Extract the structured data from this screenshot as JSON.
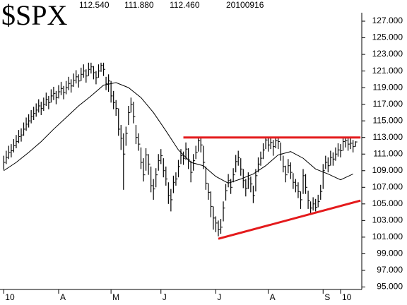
{
  "chart_data": {
    "type": "ohlc",
    "title": "$SPX",
    "info": [
      "112.540",
      "111.880",
      "112.460",
      "20100916"
    ],
    "xlim": [
      -1.5,
      143.5
    ],
    "xticks": [
      {
        "value": 0,
        "label": "10"
      },
      {
        "value": 22,
        "label": "A"
      },
      {
        "value": 43,
        "label": "M"
      },
      {
        "value": 63,
        "label": "J"
      },
      {
        "value": 85,
        "label": "J"
      },
      {
        "value": 106,
        "label": "A"
      },
      {
        "value": 128,
        "label": "S"
      },
      {
        "value": 135,
        "label": "10"
      }
    ],
    "ylim": [
      94.7,
      129.55
    ],
    "yticks": [
      {
        "value": 95,
        "label": "95.000"
      },
      {
        "value": 97,
        "label": "97.000"
      },
      {
        "value": 99,
        "label": "99.000"
      },
      {
        "value": 101,
        "label": "101.000"
      },
      {
        "value": 103,
        "label": "103.000"
      },
      {
        "value": 105,
        "label": "105.000"
      },
      {
        "value": 107,
        "label": "107.000"
      },
      {
        "value": 109,
        "label": "109.000"
      },
      {
        "value": 111,
        "label": "111.000"
      },
      {
        "value": 113,
        "label": "113.000"
      },
      {
        "value": 115,
        "label": "115.000"
      },
      {
        "value": 117,
        "label": "117.000"
      },
      {
        "value": 119,
        "label": "119.000"
      },
      {
        "value": 121,
        "label": "121.000"
      },
      {
        "value": 123,
        "label": "123.000"
      },
      {
        "value": 125,
        "label": "125.000"
      },
      {
        "value": 127,
        "label": "127.000"
      }
    ],
    "color": "#000000",
    "high": [
      110.8,
      111.4,
      112.0,
      112.2,
      112.8,
      113.3,
      113.9,
      114.1,
      114.8,
      115.4,
      115.8,
      116.3,
      116.7,
      117.1,
      117.6,
      117.3,
      117.8,
      118.4,
      118.0,
      118.8,
      119.1,
      118.6,
      119.3,
      119.7,
      119.2,
      119.8,
      120.3,
      120.0,
      120.7,
      121.1,
      120.6,
      121.4,
      121.8,
      121.2,
      122.0,
      122.0,
      121.6,
      121.0,
      121.8,
      122.0,
      122.0,
      120.3,
      120.6,
      119.8,
      118.6,
      117.5,
      116.5,
      114.5,
      113.5,
      114.3,
      116.8,
      117.8,
      117.3,
      114.5,
      113.5,
      111.8,
      110.5,
      111.7,
      111.0,
      109.5,
      108.0,
      109.3,
      111.0,
      111.6,
      110.5,
      109.5,
      107.6,
      106.8,
      108.4,
      108.8,
      110.3,
      111.6,
      111.3,
      112.4,
      111.7,
      110.2,
      111.0,
      112.0,
      113.0,
      112.9,
      112.0,
      109.5,
      107.5,
      106.5,
      104.7,
      103.5,
      103.0,
      103.2,
      105.3,
      107.4,
      108.6,
      108.0,
      109.3,
      110.9,
      111.4,
      110.5,
      109.2,
      108.0,
      108.8,
      108.3,
      107.2,
      109.2,
      110.6,
      111.3,
      112.3,
      113.0,
      112.9,
      113.0,
      112.7,
      113.0,
      113.0,
      112.4,
      110.8,
      109.6,
      110.4,
      110.0,
      108.7,
      108.0,
      107.6,
      106.5,
      109.2,
      108.6,
      106.6,
      105.3,
      105.8,
      105.6,
      106.1,
      107.3,
      109.8,
      110.8,
      110.6,
      111.4,
      111.2,
      111.8,
      112.3,
      112.2,
      113.0,
      113.0,
      113.0,
      112.9,
      112.7,
      112.54
    ],
    "low": [
      109.1,
      109.8,
      110.4,
      110.6,
      111.2,
      111.7,
      112.3,
      112.5,
      113.2,
      113.8,
      114.2,
      114.7,
      115.1,
      115.5,
      116.0,
      115.7,
      116.2,
      116.8,
      116.4,
      117.2,
      117.5,
      117.0,
      117.7,
      118.1,
      117.6,
      118.2,
      118.7,
      118.4,
      119.1,
      119.5,
      119.0,
      119.8,
      120.2,
      119.6,
      120.4,
      120.7,
      120.0,
      119.4,
      120.2,
      120.9,
      120.4,
      118.7,
      118.5,
      117.2,
      116.4,
      115.6,
      113.2,
      111.5,
      106.7,
      112.0,
      114.5,
      116.0,
      114.7,
      112.2,
      111.4,
      109.2,
      107.7,
      109.0,
      108.5,
      106.4,
      105.5,
      107.0,
      109.0,
      109.8,
      108.2,
      107.2,
      105.0,
      104.1,
      106.3,
      107.2,
      108.2,
      109.8,
      109.7,
      110.3,
      109.2,
      107.6,
      109.0,
      110.4,
      111.3,
      111.2,
      109.2,
      106.7,
      105.5,
      103.4,
      101.9,
      101.6,
      101.1,
      101.4,
      102.9,
      105.4,
      107.0,
      106.2,
      107.6,
      108.8,
      109.6,
      108.4,
      106.9,
      105.9,
      106.8,
      106.4,
      105.1,
      106.5,
      108.8,
      109.6,
      110.4,
      111.6,
      111.3,
      111.6,
      110.8,
      111.7,
      111.6,
      110.2,
      108.8,
      107.6,
      108.7,
      108.0,
      106.8,
      106.4,
      105.7,
      104.4,
      106.2,
      106.2,
      104.4,
      103.9,
      104.2,
      104.1,
      104.6,
      105.5,
      106.8,
      109.2,
      108.8,
      109.6,
      109.6,
      110.2,
      110.7,
      110.6,
      111.4,
      111.8,
      111.4,
      111.6,
      111.2,
      111.88
    ],
    "close": [
      110.0,
      110.6,
      111.2,
      111.4,
      112.0,
      112.5,
      113.1,
      113.3,
      114.0,
      114.6,
      115.0,
      115.5,
      115.9,
      116.3,
      116.8,
      116.5,
      117.0,
      117.6,
      117.2,
      118.0,
      118.3,
      117.8,
      118.5,
      118.9,
      118.4,
      119.0,
      119.5,
      119.2,
      119.9,
      120.3,
      119.8,
      120.6,
      121.0,
      120.4,
      121.2,
      121.5,
      120.8,
      120.2,
      121.0,
      121.7,
      121.2,
      119.5,
      119.8,
      118.0,
      117.2,
      116.5,
      114.0,
      112.9,
      111.0,
      113.5,
      116.0,
      117.0,
      115.5,
      113.0,
      112.2,
      110.0,
      108.5,
      110.9,
      109.8,
      107.2,
      106.8,
      108.5,
      110.2,
      110.8,
      109.0,
      108.0,
      106.0,
      105.5,
      107.6,
      108.0,
      109.5,
      110.8,
      110.5,
      111.6,
      110.3,
      108.8,
      110.2,
      111.2,
      112.6,
      112.1,
      110.0,
      107.5,
      106.4,
      104.7,
      103.3,
      102.7,
      101.9,
      102.2,
      104.5,
      106.6,
      107.8,
      107.0,
      108.5,
      110.1,
      110.6,
      109.2,
      107.8,
      106.9,
      108.0,
      107.4,
      106.0,
      108.4,
      109.8,
      110.5,
      111.5,
      112.7,
      112.1,
      112.4,
      111.9,
      112.6,
      112.5,
      111.0,
      109.5,
      108.5,
      109.6,
      108.8,
      107.6,
      107.2,
      106.5,
      105.5,
      108.4,
      107.0,
      105.4,
      104.5,
      105.0,
      104.6,
      105.3,
      106.5,
      109.0,
      110.0,
      109.6,
      110.6,
      110.4,
      111.0,
      111.5,
      111.4,
      112.5,
      112.6,
      112.2,
      112.3,
      111.9,
      112.46
    ],
    "average": {
      "color": "#000000",
      "x": [
        0,
        5,
        10,
        15,
        20,
        25,
        30,
        35,
        40,
        45,
        50,
        55,
        60,
        65,
        70,
        75,
        80,
        85,
        90,
        95,
        100,
        105,
        110,
        115,
        120,
        125,
        130,
        135,
        140
      ],
      "values": [
        109.0,
        110.0,
        111.2,
        112.5,
        114.0,
        115.4,
        116.8,
        118.0,
        119.3,
        119.6,
        119.0,
        117.8,
        116.0,
        113.8,
        111.5,
        110.0,
        109.6,
        108.3,
        107.5,
        108.0,
        108.6,
        109.6,
        110.9,
        111.3,
        110.5,
        109.2,
        108.6,
        107.9,
        108.6
      ]
    },
    "trendlines": [
      {
        "color": "#e41a1c",
        "x": [
          72,
          143
        ],
        "values": [
          113,
          113
        ]
      },
      {
        "color": "#e41a1c",
        "x": [
          86,
          143
        ],
        "values": [
          100.8,
          105.4
        ]
      }
    ]
  }
}
